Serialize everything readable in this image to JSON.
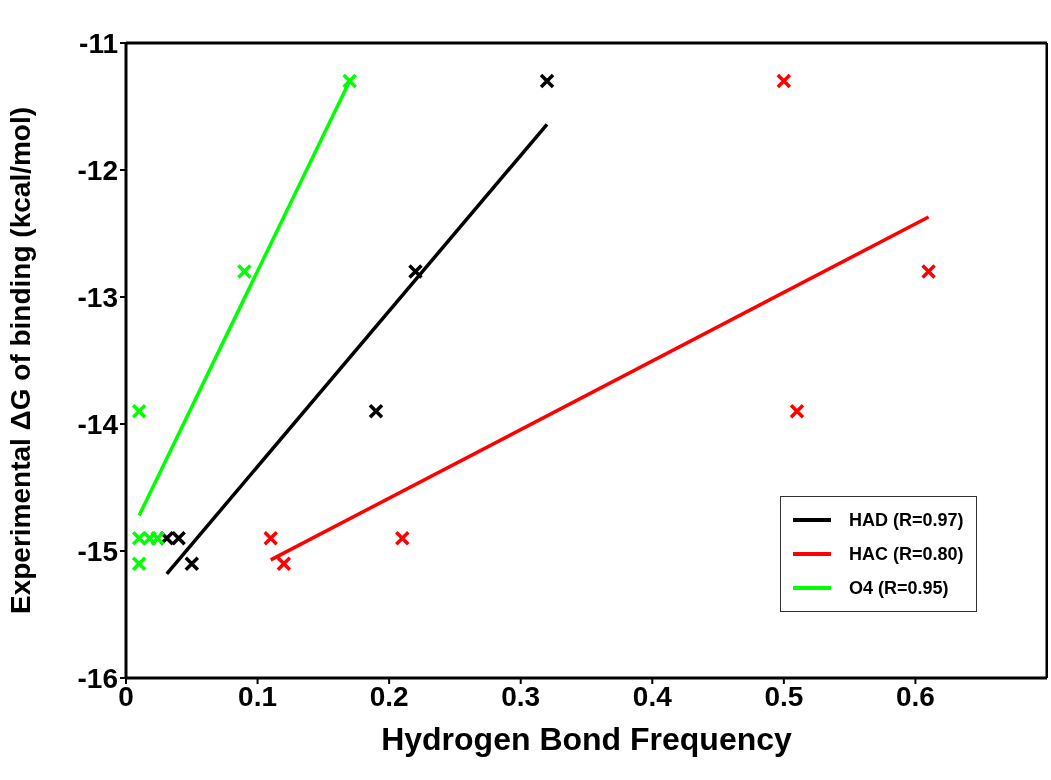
{
  "chart_data": {
    "type": "scatter",
    "xlabel": "Hydrogen Bond Frequency",
    "ylabel": "Experimental ΔG of binding (kcal/mol)",
    "xlim": [
      0,
      0.7
    ],
    "xticks": [
      0,
      0.1,
      0.2,
      0.3,
      0.4,
      0.5,
      0.6
    ],
    "ylim": [
      -16,
      -11
    ],
    "yticks": [
      -16,
      -15,
      -14,
      -13,
      -12,
      -11
    ],
    "legend": "bottom right",
    "marker": "cross",
    "series": [
      {
        "color": "#000000",
        "x": [
          0.031,
          0.04,
          0.05,
          0.19,
          0.22,
          0.32
        ],
        "values": [
          -14.9,
          -14.9,
          -15.1,
          -13.9,
          -12.8,
          -11.3
        ]
      },
      {
        "color": "#ff0000",
        "x": [
          0.11,
          0.12,
          0.21,
          0.5,
          0.51,
          0.61
        ],
        "values": [
          -14.9,
          -15.1,
          -14.9,
          -11.3,
          -13.9,
          -12.8
        ]
      },
      {
        "color": "#00ff00",
        "x": [
          0.01,
          0.01,
          0.018,
          0.024,
          0.01,
          0.09,
          0.17
        ],
        "values": [
          -13.9,
          -14.9,
          -14.9,
          -14.9,
          -15.1,
          -12.8,
          -11.3
        ]
      },
      {
        "type": "line",
        "marker": "none",
        "name": "HAD (R=0.97)",
        "color": "#000000",
        "x": [
          0.031,
          0.32
        ],
        "values": [
          -15.18,
          -11.64
        ]
      },
      {
        "type": "line",
        "marker": "none",
        "name": "HAC (R=0.80)",
        "color": "#ff0000",
        "x": [
          0.11,
          0.61
        ],
        "values": [
          -15.07,
          -12.37
        ]
      },
      {
        "type": "line",
        "marker": "none",
        "name": "O4 (R=0.95)",
        "color": "#00ff00",
        "x": [
          0.01,
          0.17
        ],
        "values": [
          -14.72,
          -11.3
        ]
      }
    ]
  }
}
